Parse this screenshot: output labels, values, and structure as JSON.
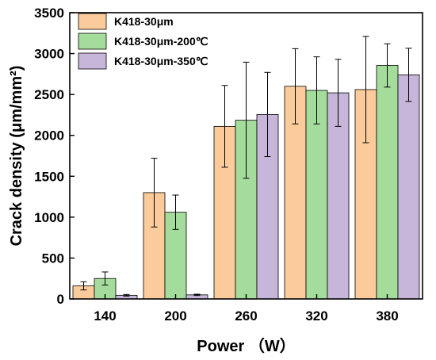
{
  "chart_data": {
    "type": "bar",
    "xlabel": "Power （W）",
    "ylabel": "Crack density (μm/mm²)",
    "ylim": [
      0,
      3500
    ],
    "yticks": [
      0,
      500,
      1000,
      1500,
      2000,
      2500,
      3000,
      3500
    ],
    "categories": [
      "140",
      "200",
      "260",
      "320",
      "380"
    ],
    "series": [
      {
        "name": "K418-30μm",
        "color": "#fbcb9c",
        "values": [
          160,
          1300,
          2110,
          2600,
          2560
        ],
        "errors": [
          50,
          420,
          500,
          460,
          650
        ]
      },
      {
        "name": "K418-30μm-200℃",
        "color": "#a4dd9b",
        "values": [
          250,
          1060,
          2185,
          2550,
          2855
        ],
        "errors": [
          80,
          210,
          710,
          410,
          265
        ]
      },
      {
        "name": "K418-30μm-350℃",
        "color": "#c7b6da",
        "values": [
          45,
          50,
          2255,
          2520,
          2740
        ],
        "errors": [
          10,
          8,
          515,
          410,
          325
        ]
      }
    ],
    "legend_position": "top-left",
    "grid": false
  }
}
